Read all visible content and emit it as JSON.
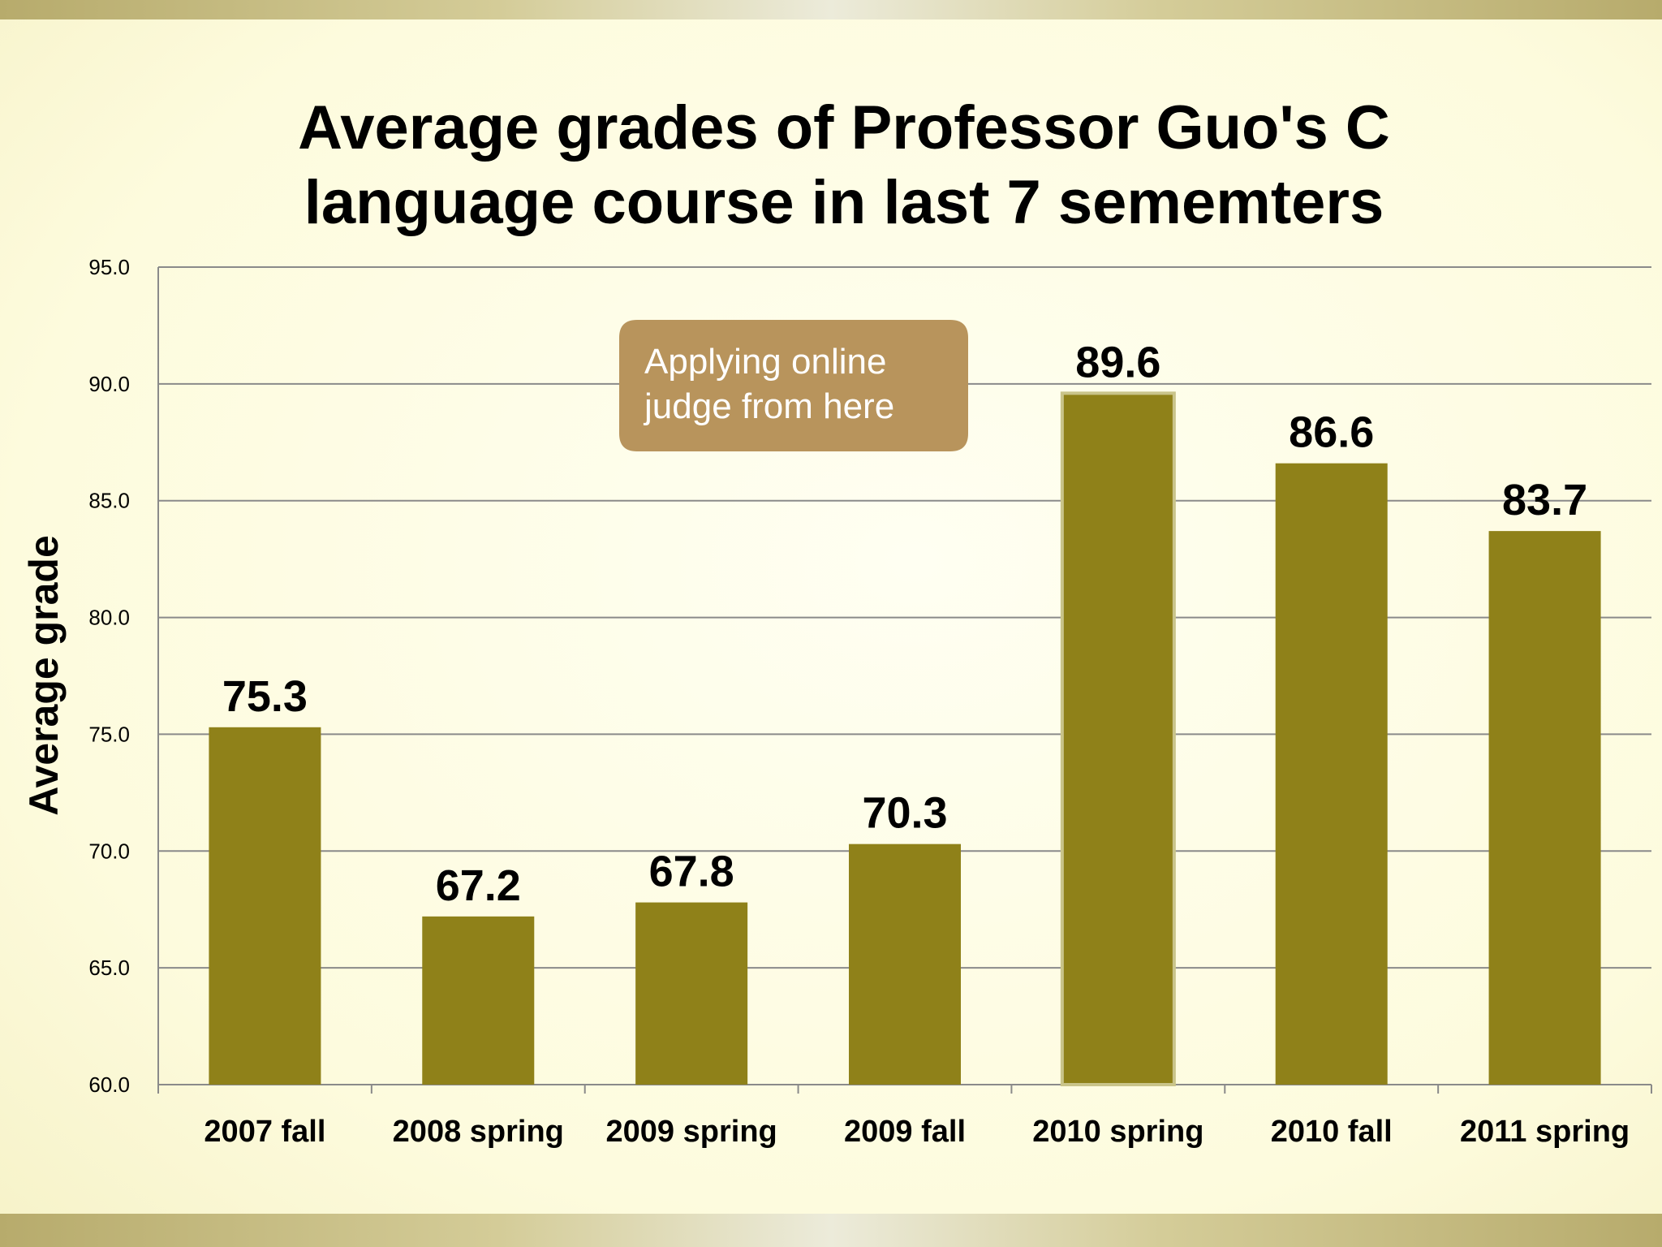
{
  "chart_data": {
    "type": "bar",
    "title_lines": [
      "Average grades of Professor Guo's C",
      "language course in last 7 sememters"
    ],
    "ylabel": "Average grade",
    "xlabel": "",
    "ylim": [
      60,
      95
    ],
    "y_ticks": [
      "95.0",
      "90.0",
      "85.0",
      "80.0",
      "75.0",
      "70.0",
      "65.0",
      "60.0"
    ],
    "categories": [
      "2007 fall",
      "2008 spring",
      "2009 spring",
      "2009 fall",
      "2010 spring",
      "2010 fall",
      "2011 spring"
    ],
    "values": [
      75.3,
      67.2,
      67.8,
      70.3,
      89.6,
      86.6,
      83.7
    ],
    "value_labels": [
      "75.3",
      "67.2",
      "67.8",
      "70.3",
      "89.6",
      "86.6",
      "83.7"
    ],
    "grid": true,
    "bar_color": "#8f8119",
    "highlight_index": 4,
    "annotation": {
      "lines": [
        "Applying online",
        "judge from here"
      ],
      "target_category": "2010 spring",
      "fill": "#b8945c"
    }
  }
}
